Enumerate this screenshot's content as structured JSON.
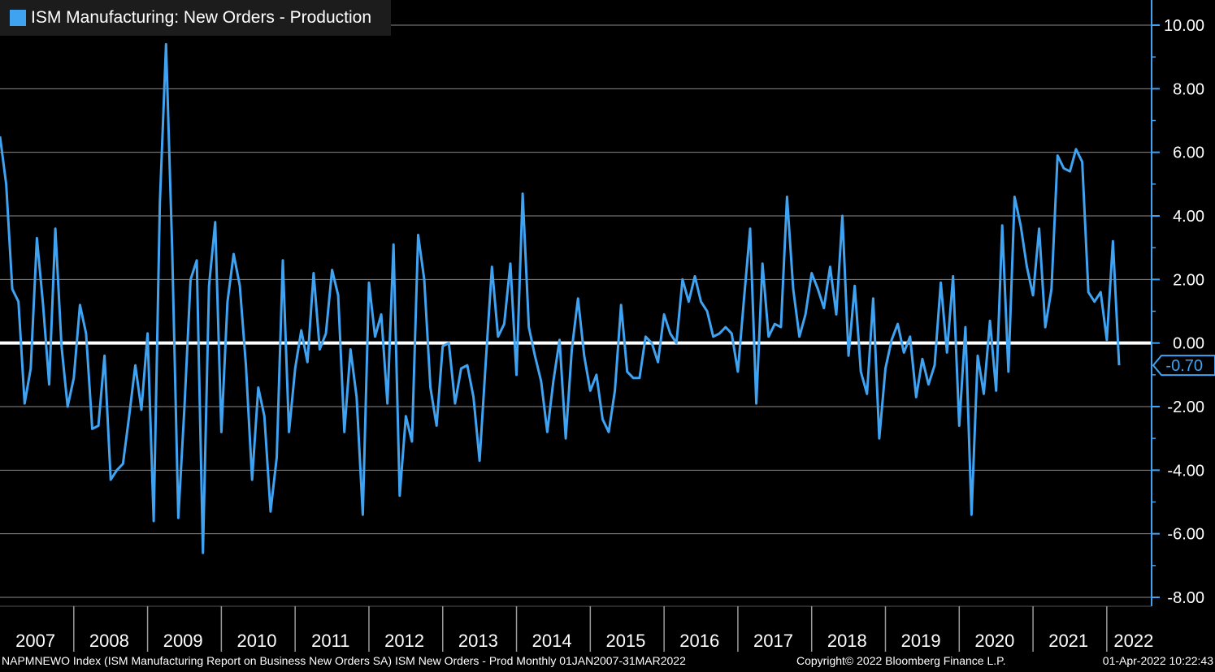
{
  "colors": {
    "background": "#000000",
    "series": "#3fa3f2",
    "zero_line": "#ffffff",
    "grid": "#8a8a8a",
    "axis": "#3fa3f2",
    "last_value_label": "#3fa3f2"
  },
  "footer": {
    "left": "NAPMNEWO Index (ISM Manufacturing Report on Business New Orders SA) ISM New Orders - Prod  Monthly 01JAN2007-31MAR2022",
    "center": "Copyright© 2022 Bloomberg Finance L.P.",
    "right": "01-Apr-2022 10:22:43"
  },
  "chart_data": {
    "type": "line",
    "legend": "ISM Manufacturing: New Orders - Production",
    "legend_placement": "top-left",
    "y_axis_side": "right",
    "ylim": [
      -8.0,
      10.0
    ],
    "y_ticks": [
      -8.0,
      -6.0,
      -4.0,
      -2.0,
      0.0,
      2.0,
      4.0,
      6.0,
      8.0,
      10.0
    ],
    "y_tick_labels": [
      "-8.00",
      "-6.00",
      "-4.00",
      "-2.00",
      "0.00",
      "2.00",
      "4.00",
      "6.00",
      "8.00",
      "10.00"
    ],
    "grid": true,
    "zero_line": true,
    "x_categories": [
      "2007",
      "2008",
      "2009",
      "2010",
      "2011",
      "2012",
      "2013",
      "2014",
      "2015",
      "2016",
      "2017",
      "2018",
      "2019",
      "2020",
      "2021",
      "2022"
    ],
    "last_value_label": "-0.70",
    "series": [
      {
        "name": "ISM Manufacturing: New Orders - Production",
        "start": "2007-01",
        "frequency": "monthly",
        "values": [
          6.5,
          5.0,
          1.7,
          1.3,
          -1.9,
          -0.8,
          3.3,
          1.2,
          -1.3,
          3.6,
          -0.1,
          -2.0,
          -1.1,
          1.2,
          0.3,
          -2.7,
          -2.6,
          -0.4,
          -4.3,
          -4.0,
          -3.8,
          -2.3,
          -0.7,
          -2.1,
          0.3,
          -5.6,
          4.4,
          9.4,
          3.0,
          -5.5,
          -2.0,
          2.0,
          2.6,
          -6.6,
          1.8,
          3.8,
          -2.8,
          1.3,
          2.8,
          1.8,
          -0.7,
          -4.3,
          -1.4,
          -2.3,
          -5.3,
          -3.6,
          2.6,
          -2.8,
          -0.8,
          0.4,
          -0.6,
          2.2,
          -0.2,
          0.3,
          2.3,
          1.5,
          -2.8,
          -0.2,
          -1.7,
          -5.4,
          1.9,
          0.2,
          0.9,
          -1.9,
          3.1,
          -4.8,
          -2.3,
          -3.1,
          3.4,
          2.0,
          -1.4,
          -2.6,
          -0.1,
          0.0,
          -1.9,
          -0.8,
          -0.7,
          -1.7,
          -3.7,
          -0.6,
          2.4,
          0.2,
          0.6,
          2.5,
          -1.0,
          4.7,
          0.5,
          -0.4,
          -1.2,
          -2.8,
          -1.2,
          0.1,
          -3.0,
          -0.2,
          1.4,
          -0.4,
          -1.5,
          -1.0,
          -2.4,
          -2.8,
          -1.5,
          1.2,
          -0.9,
          -1.1,
          -1.1,
          0.2,
          0.0,
          -0.6,
          0.9,
          0.3,
          0.0,
          2.0,
          1.3,
          2.1,
          1.3,
          1.0,
          0.2,
          0.3,
          0.5,
          0.3,
          -0.9,
          1.4,
          3.6,
          -1.9,
          2.5,
          0.2,
          0.6,
          0.5,
          4.6,
          1.7,
          0.2,
          0.9,
          2.2,
          1.7,
          1.1,
          2.4,
          0.9,
          4.0,
          -0.4,
          1.8,
          -0.9,
          -1.6,
          1.4,
          -3.0,
          -0.8,
          0.1,
          0.6,
          -0.3,
          0.2,
          -1.7,
          -0.5,
          -1.3,
          -0.7,
          1.9,
          -0.3,
          2.1,
          -2.6,
          0.5,
          -5.4,
          -0.4,
          -1.6,
          0.7,
          -1.5,
          3.7,
          -0.9,
          4.6,
          3.7,
          2.4,
          1.5,
          3.6,
          0.5,
          1.7,
          5.9,
          5.5,
          5.4,
          6.1,
          5.7,
          1.6,
          1.3,
          1.6,
          0.1,
          3.2,
          -0.7
        ]
      }
    ]
  }
}
